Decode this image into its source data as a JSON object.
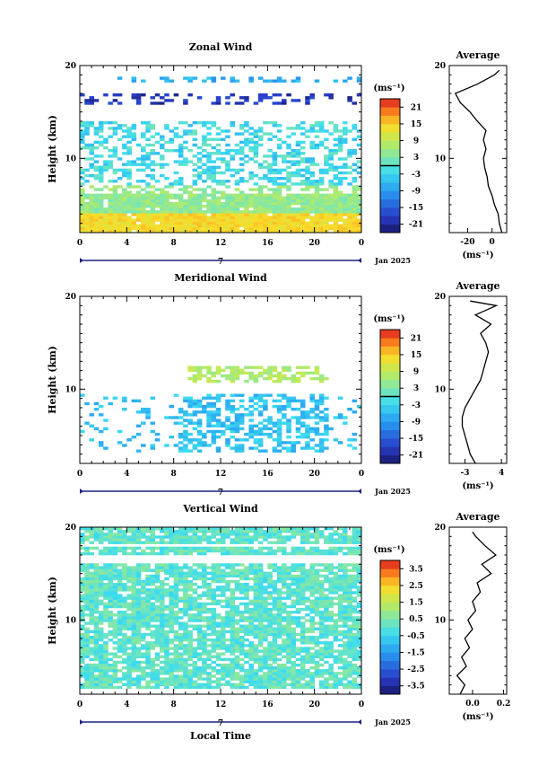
{
  "chart_data": [
    {
      "type": "heatmap",
      "title": "Zonal Wind",
      "ylabel": "Height (km)",
      "ylim": [
        2,
        20
      ],
      "xlim": [
        0,
        24
      ],
      "x_ticks": [
        "0",
        "4",
        "8",
        "12",
        "16",
        "20",
        "0"
      ],
      "y_ticks": [
        "20",
        "10"
      ],
      "day_label": "7",
      "date_label": "Jan 2025",
      "colorbar": {
        "unit": "(ms⁻¹)",
        "range": [
          -24,
          24
        ],
        "ticks": [
          "21",
          "15",
          "9",
          "3",
          "-3",
          "-9",
          "-15",
          "-21"
        ],
        "black_line_at": 0
      },
      "profile": {
        "title": "Average",
        "xlabel": "(ms⁻¹)",
        "xlim": [
          -35,
          12
        ],
        "x_ticks": [
          "-20",
          "0"
        ],
        "y_ticks": [
          "20",
          "10"
        ],
        "heights_km": [
          2,
          3,
          4,
          5,
          6,
          7,
          8,
          9,
          10,
          11,
          12,
          13,
          14,
          15,
          16,
          17,
          18,
          19,
          19.5
        ],
        "values": [
          8,
          6,
          5,
          2,
          0,
          -3,
          -4,
          -6,
          -7,
          -5,
          -7,
          -5,
          -12,
          -18,
          -26,
          -30,
          -12,
          2,
          6
        ]
      }
    },
    {
      "type": "heatmap",
      "title": "Meridional Wind",
      "ylabel": "Height (km)",
      "ylim": [
        2,
        20
      ],
      "xlim": [
        0,
        24
      ],
      "x_ticks": [
        "0",
        "4",
        "8",
        "12",
        "16",
        "20",
        "0"
      ],
      "y_ticks": [
        "20",
        "10"
      ],
      "day_label": "7",
      "date_label": "Jan 2025",
      "colorbar": {
        "unit": "(ms⁻¹)",
        "range": [
          -24,
          24
        ],
        "ticks": [
          "21",
          "15",
          "9",
          "3",
          "-3",
          "-9",
          "-15",
          "-21"
        ],
        "black_line_at": 0
      },
      "profile": {
        "title": "Average",
        "xlabel": "(ms⁻¹)",
        "xlim": [
          -6,
          5
        ],
        "x_ticks": [
          "-3",
          "4"
        ],
        "y_ticks": [
          "20",
          "10"
        ],
        "heights_km": [
          2,
          3,
          4,
          5,
          6,
          7,
          8,
          9,
          10,
          11,
          12,
          13,
          14,
          15,
          16,
          17,
          18,
          19,
          19.5
        ],
        "values": [
          -1,
          -2,
          -2.5,
          -3,
          -3.5,
          -3.5,
          -3,
          -2,
          -1,
          0,
          0.5,
          1,
          1.5,
          1,
          0,
          2,
          -1,
          3,
          -2
        ]
      }
    },
    {
      "type": "heatmap",
      "title": "Vertical Wind",
      "xlabel": "Local Time",
      "ylabel": "Height (km)",
      "ylim": [
        2,
        20
      ],
      "xlim": [
        0,
        24
      ],
      "x_ticks": [
        "0",
        "4",
        "8",
        "12",
        "16",
        "20",
        "0"
      ],
      "y_ticks": [
        "20",
        "10"
      ],
      "day_label": "7",
      "date_label": "Jan 2025",
      "colorbar": {
        "unit": "(ms⁻¹)",
        "range": [
          -4,
          4
        ],
        "ticks": [
          "3.5",
          "2.5",
          "1.5",
          "0.5",
          "-0.5",
          "-1.5",
          "-2.5",
          "-3.5"
        ],
        "black_line_at": null
      },
      "profile": {
        "title": "Average",
        "xlabel": "(ms⁻¹)",
        "xlim": [
          -0.15,
          0.22
        ],
        "x_ticks": [
          "0.0",
          "0.2"
        ],
        "y_ticks": [
          "20",
          "10"
        ],
        "heights_km": [
          2,
          3,
          4,
          5,
          6,
          7,
          8,
          9,
          10,
          11,
          12,
          13,
          14,
          15,
          16,
          17,
          18,
          19,
          19.5
        ],
        "values": [
          -0.08,
          -0.05,
          -0.1,
          -0.04,
          -0.07,
          -0.02,
          -0.05,
          0.0,
          -0.03,
          0.02,
          0.0,
          0.05,
          0.03,
          0.12,
          0.06,
          0.15,
          0.08,
          0.02,
          0.0
        ]
      }
    }
  ]
}
